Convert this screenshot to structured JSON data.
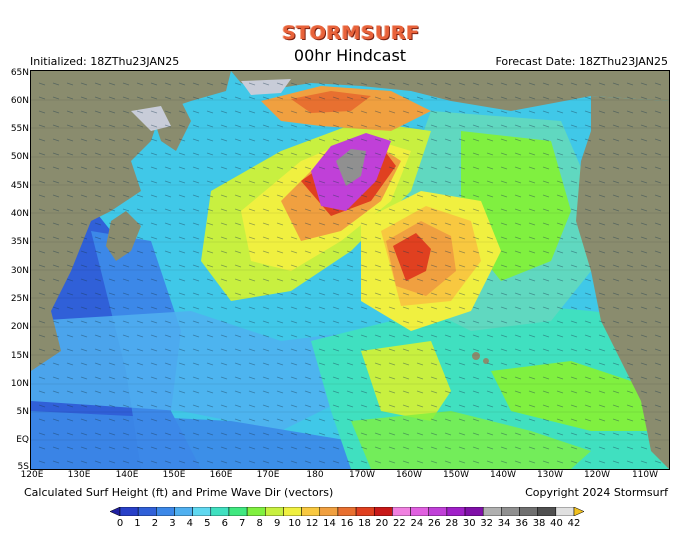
{
  "header": {
    "logo_text": "STORMSURF",
    "subtitle": "00hr Hindcast",
    "initialized": "Initialized: 18ZThu23JAN25",
    "forecast_date": "Forecast Date: 18ZThu23JAN25"
  },
  "map": {
    "latitude_labels": [
      "65N",
      "60N",
      "55N",
      "50N",
      "45N",
      "40N",
      "35N",
      "30N",
      "25N",
      "20N",
      "15N",
      "10N",
      "5N",
      "EQ",
      "5S"
    ],
    "longitude_labels": [
      "120E",
      "130E",
      "140E",
      "150E",
      "160E",
      "170E",
      "180",
      "170W",
      "160W",
      "150W",
      "140W",
      "130W",
      "120W",
      "110W"
    ],
    "land_color": "#8a8c6e",
    "ice_color": "#c8ccd8"
  },
  "footer": {
    "caption": "Calculated Surf Height (ft) and Prime Wave Dir (vectors)",
    "copyright": "Copyright 2024 Stormsurf"
  },
  "colorbar": {
    "labels": [
      "0",
      "1",
      "2",
      "3",
      "4",
      "5",
      "6",
      "7",
      "8",
      "9",
      "10",
      "12",
      "14",
      "16",
      "18",
      "20",
      "22",
      "24",
      "26",
      "28",
      "30",
      "32",
      "34",
      "36",
      "38",
      "40",
      "42"
    ],
    "colors": [
      "#2020a0",
      "#2840c8",
      "#3060d8",
      "#3c88e8",
      "#50b0f0",
      "#60d8f0",
      "#40e0c0",
      "#40e880",
      "#80f040",
      "#c8f040",
      "#f0f040",
      "#f8c840",
      "#f0a040",
      "#e87030",
      "#e04020",
      "#c81818",
      "#f080e0",
      "#e060e0",
      "#c040d8",
      "#a020c8",
      "#8010a8",
      "#b0b0b0",
      "#909090",
      "#707070",
      "#505050",
      "#e0e0e0",
      "#f0c020"
    ]
  }
}
